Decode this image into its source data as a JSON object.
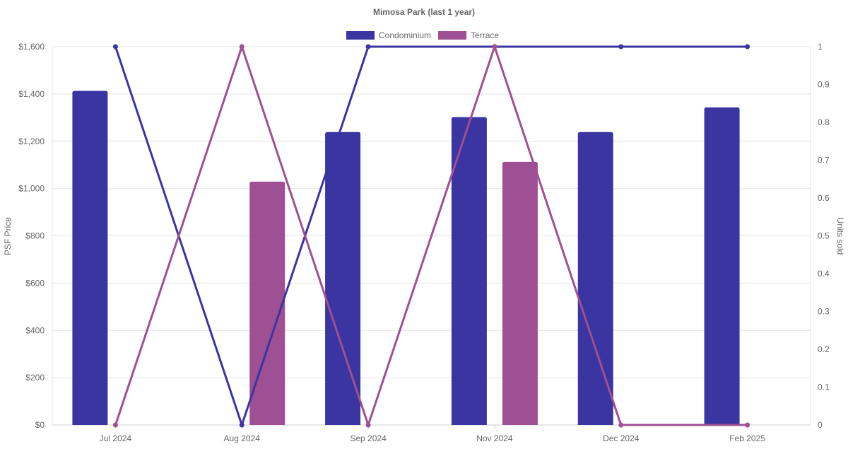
{
  "chart_data": {
    "type": "bar",
    "title": "Mimosa Park (last 1 year)",
    "categories": [
      "Jul 2024",
      "Aug 2024",
      "Sep 2024",
      "Nov 2024",
      "Dec 2024",
      "Feb 2025"
    ],
    "ylabel": "PSF Price",
    "y2label": "Units sold",
    "ylim": [
      0,
      1600
    ],
    "y2lim": [
      0,
      1
    ],
    "yticks": [
      "$0",
      "$200",
      "$400",
      "$600",
      "$800",
      "$1,000",
      "$1,200",
      "$1,400",
      "$1,600"
    ],
    "y2ticks": [
      "0",
      "0.1",
      "0.2",
      "0.3",
      "0.4",
      "0.5",
      "0.6",
      "0.7",
      "0.8",
      "0.9",
      "1"
    ],
    "legend_position": "top",
    "grid": true,
    "series": [
      {
        "name": "Condominium",
        "color": "#3a35a0",
        "psf": [
          1413,
          null,
          1239,
          1302,
          1239,
          1343
        ],
        "units": [
          1,
          0,
          1,
          1,
          1,
          1
        ]
      },
      {
        "name": "Terrace",
        "color": "#9f4f93",
        "psf": [
          null,
          1029,
          null,
          1113,
          null,
          null
        ],
        "units": [
          0,
          1,
          0,
          1,
          0,
          0
        ]
      }
    ]
  }
}
